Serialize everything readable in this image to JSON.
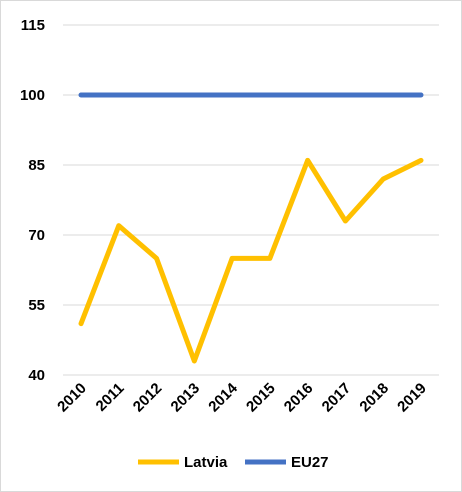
{
  "chart_data": {
    "type": "line",
    "title": "",
    "xlabel": "",
    "ylabel": "",
    "categories": [
      "2010",
      "2011",
      "2012",
      "2013",
      "2014",
      "2015",
      "2016",
      "2017",
      "2018",
      "2019"
    ],
    "series": [
      {
        "name": "Latvia",
        "color": "#FFC000",
        "values": [
          51,
          72,
          65,
          43,
          65,
          65,
          86,
          73,
          82,
          86
        ]
      },
      {
        "name": "EU27",
        "color": "#4472C4",
        "values": [
          100,
          100,
          100,
          100,
          100,
          100,
          100,
          100,
          100,
          100
        ]
      }
    ],
    "ylim": [
      40,
      115
    ],
    "yticks": [
      40,
      55,
      70,
      85,
      100,
      115
    ],
    "grid": true,
    "legend": "bottom"
  }
}
